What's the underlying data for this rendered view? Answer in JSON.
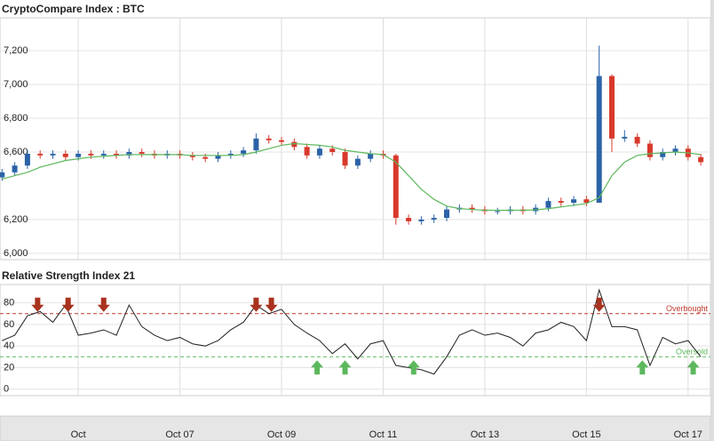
{
  "chart_data": [
    {
      "type": "candlestick",
      "title": "CryptoCompare Index : BTC",
      "x": [
        3.5,
        3.75,
        4,
        4.25,
        4.5,
        4.75,
        5,
        5.25,
        5.5,
        5.75,
        6,
        6.25,
        6.5,
        6.75,
        7,
        7.25,
        7.5,
        7.75,
        8,
        8.25,
        8.5,
        8.75,
        9,
        9.25,
        9.5,
        9.75,
        10,
        10.25,
        10.5,
        10.75,
        11,
        11.25,
        11.5,
        11.75,
        12,
        12.25,
        12.5,
        12.75,
        13,
        13.25,
        13.5,
        13.75,
        14,
        14.25,
        14.5,
        14.75,
        15,
        15.25,
        15.5,
        15.75,
        16,
        16.25,
        16.5,
        16.75,
        17,
        17.25
      ],
      "open": [
        6450,
        6480,
        6520,
        6590,
        6580,
        6590,
        6570,
        6590,
        6580,
        6590,
        6580,
        6600,
        6590,
        6580,
        6590,
        6580,
        6570,
        6560,
        6580,
        6590,
        6610,
        6680,
        6670,
        6660,
        6630,
        6580,
        6620,
        6600,
        6520,
        6560,
        6590,
        6580,
        6210,
        6190,
        6200,
        6210,
        6260,
        6270,
        6260,
        6250,
        6250,
        6260,
        6250,
        6270,
        6310,
        6300,
        6320,
        6300,
        7050,
        6680,
        6690,
        6650,
        6570,
        6600,
        6620,
        6570
      ],
      "high": [
        6500,
        6540,
        6610,
        6610,
        6610,
        6610,
        6610,
        6610,
        6610,
        6610,
        6620,
        6620,
        6610,
        6610,
        6610,
        6600,
        6590,
        6600,
        6610,
        6630,
        6710,
        6700,
        6690,
        6680,
        6650,
        6640,
        6640,
        6620,
        6580,
        6610,
        6610,
        6590,
        6230,
        6220,
        6230,
        6280,
        6290,
        6290,
        6280,
        6270,
        6280,
        6280,
        6290,
        6330,
        6330,
        6340,
        6340,
        7230,
        7060,
        6730,
        6710,
        6670,
        6620,
        6640,
        6640,
        6590
      ],
      "low": [
        6430,
        6460,
        6500,
        6560,
        6560,
        6550,
        6550,
        6560,
        6560,
        6560,
        6560,
        6570,
        6560,
        6560,
        6560,
        6550,
        6540,
        6540,
        6560,
        6570,
        6590,
        6650,
        6640,
        6610,
        6560,
        6560,
        6580,
        6500,
        6500,
        6540,
        6560,
        6170,
        6170,
        6170,
        6180,
        6190,
        6240,
        6240,
        6230,
        6230,
        6230,
        6230,
        6230,
        6250,
        6280,
        6280,
        6280,
        6310,
        6600,
        6660,
        6630,
        6550,
        6550,
        6580,
        6550,
        6520
      ],
      "close": [
        6480,
        6520,
        6590,
        6580,
        6590,
        6570,
        6590,
        6580,
        6590,
        6580,
        6600,
        6590,
        6580,
        6590,
        6580,
        6570,
        6560,
        6580,
        6590,
        6610,
        6680,
        6670,
        6660,
        6630,
        6580,
        6620,
        6600,
        6520,
        6560,
        6590,
        6580,
        6210,
        6190,
        6200,
        6210,
        6260,
        6270,
        6260,
        6250,
        6250,
        6260,
        6250,
        6270,
        6310,
        6300,
        6320,
        6300,
        7050,
        6680,
        6690,
        6650,
        6570,
        6600,
        6620,
        6570,
        6540
      ],
      "up_color": "#2b63a8",
      "down_color": "#d8392b",
      "average": {
        "color": "#5cb85c",
        "values": [
          6440,
          6460,
          6480,
          6510,
          6530,
          6550,
          6560,
          6570,
          6575,
          6580,
          6585,
          6585,
          6585,
          6585,
          6585,
          6580,
          6580,
          6580,
          6580,
          6585,
          6600,
          6620,
          6640,
          6650,
          6645,
          6640,
          6630,
          6610,
          6600,
          6590,
          6585,
          6540,
          6460,
          6380,
          6320,
          6280,
          6265,
          6260,
          6255,
          6255,
          6255,
          6255,
          6258,
          6265,
          6275,
          6285,
          6295,
          6330,
          6460,
          6540,
          6580,
          6590,
          6595,
          6600,
          6595,
          6585
        ]
      },
      "xlim": [
        3.46,
        17.44
      ],
      "xticks": [
        {
          "value": 5,
          "label": "Oct"
        },
        {
          "value": 7,
          "label": "Oct 07"
        },
        {
          "value": 9,
          "label": "Oct 09"
        },
        {
          "value": 11,
          "label": "Oct 11"
        },
        {
          "value": 13,
          "label": "Oct 13"
        },
        {
          "value": 15,
          "label": "Oct 15"
        },
        {
          "value": 17,
          "label": "Oct 17"
        }
      ],
      "ylim": [
        5963,
        7395
      ],
      "yticks": [
        {
          "value": 6000,
          "label": "6,000"
        },
        {
          "value": 6200,
          "label": "6,200"
        },
        {
          "value": 6600,
          "label": "6,600"
        },
        {
          "value": 6800,
          "label": "6,800"
        },
        {
          "value": 7000,
          "label": "7,000"
        },
        {
          "value": 7200,
          "label": "7,200"
        }
      ],
      "grid": true
    },
    {
      "type": "line",
      "title": "Relative Strength Index 21",
      "color": "#222222",
      "values": [
        45,
        50,
        68,
        72,
        62,
        78,
        50,
        52,
        55,
        50,
        78,
        58,
        50,
        45,
        48,
        42,
        40,
        45,
        55,
        62,
        78,
        70,
        74,
        60,
        52,
        45,
        33,
        42,
        28,
        42,
        45,
        22,
        20,
        18,
        14,
        30,
        50,
        55,
        50,
        52,
        48,
        40,
        52,
        55,
        62,
        58,
        45,
        92,
        58,
        58,
        55,
        22,
        48,
        42,
        45,
        30
      ],
      "ylim": [
        -6,
        97
      ],
      "yticks": [
        0,
        20,
        40,
        60,
        80
      ],
      "grid": true,
      "overbought": {
        "value": 70,
        "label": "Overbought",
        "color": "#c0392b"
      },
      "oversold": {
        "value": 30,
        "label": "Oversold",
        "color": "#5cb85c"
      },
      "sell_x": [
        4.2,
        4.8,
        5.5,
        8.5,
        8.8,
        15.25
      ],
      "buy_x": [
        9.7,
        10.25,
        11.6,
        16.1,
        17.1
      ]
    }
  ]
}
